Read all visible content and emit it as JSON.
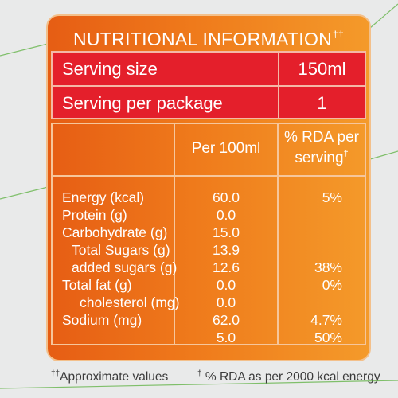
{
  "title": "NUTRITIONAL INFORMATION",
  "title_mark": "††",
  "serving": {
    "size_label": "Serving size",
    "size_value": "150ml",
    "per_package_label": "Serving per package",
    "per_package_value": "1"
  },
  "headers": {
    "per_100ml": "Per 100ml",
    "rda_line1": "% RDA per",
    "rda_line2": "serving",
    "rda_mark": "†"
  },
  "nutrients": [
    {
      "name": "Energy (kcal)",
      "per100": "60.0",
      "rda": "5%"
    },
    {
      "name": "Protein (g)",
      "per100": "0.0",
      "rda": ""
    },
    {
      "name": "Carbohydrate (g)",
      "per100": "15.0",
      "rda": ""
    },
    {
      "name": "Total Sugars (g)",
      "per100": "13.9",
      "rda": ""
    },
    {
      "name": "added sugars (g)",
      "per100": "12.6",
      "rda": "38%"
    },
    {
      "name": "Total fat (g)",
      "per100": "0.0",
      "rda": "0%"
    },
    {
      "name": "cholesterol (mg)",
      "per100": "0.0",
      "rda": ""
    },
    {
      "name": "Sodium (mg)",
      "per100": "62.0",
      "rda": "4.7%"
    },
    {
      "name": "",
      "per100": "5.0",
      "rda": "50%"
    }
  ],
  "footer": {
    "approx_mark": "††",
    "approx_text": "Approximate values",
    "rda_mark": "†",
    "rda_text": "% RDA as per 2000 kcal energy"
  },
  "colors": {
    "panel_orange": "#ef7a1b",
    "serving_red": "#e41f2b",
    "text_white": "#ffffff",
    "background": "#e9eaea"
  }
}
